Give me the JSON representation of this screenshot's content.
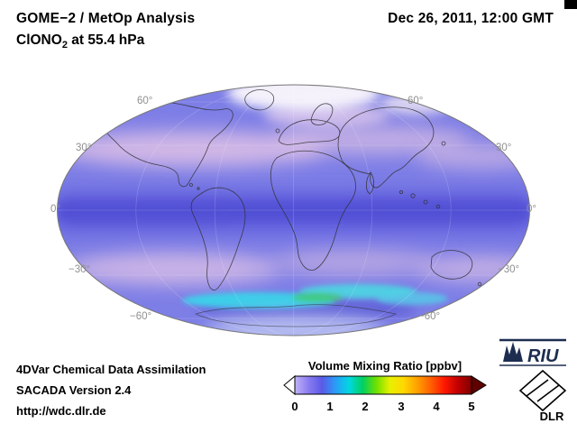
{
  "header": {
    "title_line1": "GOME−2 / MetOp Analysis",
    "compound": "ClONO",
    "compound_sub": "2",
    "level": " at 55.4 hPa",
    "datetime": "Dec 26, 2011, 12:00 GMT"
  },
  "map": {
    "lat_labels": [
      "60°",
      "30°",
      "0°",
      "−30°",
      "−60°"
    ]
  },
  "colorbar": {
    "title": "Volume Mixing Ratio [ppbv]",
    "ticks": [
      "0",
      "1",
      "2",
      "3",
      "4",
      "5"
    ]
  },
  "footer": {
    "line1": "4DVar Chemical Data Assimilation",
    "line2": "SACADA Version 2.4",
    "line3": "http://wdc.dlr.de"
  },
  "logos": {
    "riu": "RIU",
    "dlr": "DLR"
  },
  "chart_data": {
    "type": "heatmap",
    "title": "GOME−2 / MetOp Analysis — ClONO2 at 55.4 hPa",
    "datetime": "Dec 26, 2011, 12:00 GMT",
    "projection": "Mollweide global map",
    "colorbar": {
      "label": "Volume Mixing Ratio [ppbv]",
      "min": 0,
      "max": 5,
      "ticks": [
        0,
        1,
        2,
        3,
        4,
        5
      ],
      "colormap": [
        "#c0b2f8",
        "#8a7cf0",
        "#5a5ae8",
        "#2a9cf8",
        "#00d8e0",
        "#00d060",
        "#70e000",
        "#e8f000",
        "#ffd800",
        "#ffa000",
        "#ff6000",
        "#ff1800",
        "#c00000",
        "#800000"
      ],
      "under_range_color": "#ffffff",
      "over_range_color": "#600000"
    },
    "lat_gridlines_deg": [
      60,
      30,
      0,
      -30,
      -60
    ],
    "approx_values_ppbv": [
      {
        "region": "global background",
        "value": 0.7
      },
      {
        "region": "equatorial band",
        "value": 1.0
      },
      {
        "region": "northern mid-latitude band (pink)",
        "value": 0.2
      },
      {
        "region": "southern mid-latitude band (pink)",
        "value": 0.2
      },
      {
        "region": "north polar cap (white)",
        "value": 0.0
      },
      {
        "region": "antarctic collar streaks (cyan/green)",
        "value": 1.8
      }
    ]
  }
}
